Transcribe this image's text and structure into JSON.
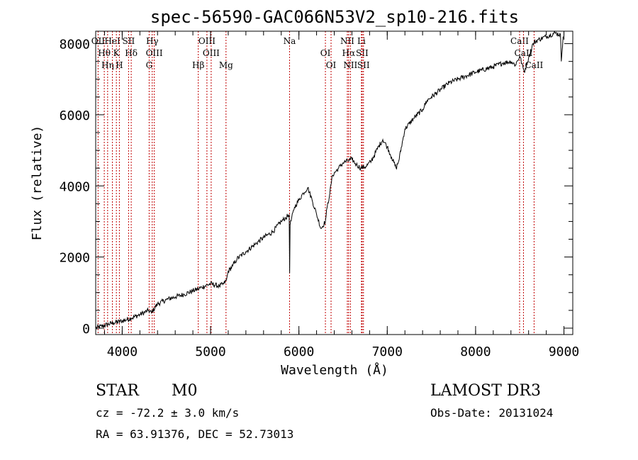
{
  "chart_data": {
    "type": "line",
    "title": "spec-56590-GAC066N53V2_sp10-216.fits",
    "xlabel": "Wavelength (Å)",
    "ylabel": "Flux (relative)",
    "xlim": [
      3700,
      9100
    ],
    "ylim": [
      -180,
      8350
    ],
    "xticks": [
      4000,
      5000,
      6000,
      7000,
      8000,
      9000
    ],
    "yticks": [
      0,
      2000,
      4000,
      6000,
      8000
    ],
    "xtick_labels": [
      "4000",
      "5000",
      "6000",
      "7000",
      "8000",
      "9000"
    ],
    "ytick_labels": [
      "0",
      "2000",
      "4000",
      "6000",
      "8000"
    ],
    "series": [
      {
        "name": "flux",
        "x": [
          3700,
          3800,
          3900,
          4000,
          4100,
          4200,
          4300,
          4330,
          4400,
          4500,
          4600,
          4700,
          4800,
          4860,
          4900,
          5000,
          5100,
          5150,
          5180,
          5200,
          5250,
          5300,
          5400,
          5500,
          5600,
          5700,
          5800,
          5850,
          5890,
          5895,
          5900,
          5950,
          6000,
          6050,
          6100,
          6150,
          6200,
          6250,
          6300,
          6320,
          6350,
          6380,
          6450,
          6500,
          6550,
          6600,
          6650,
          6700,
          6760,
          6820,
          6900,
          6950,
          7000,
          7050,
          7100,
          7130,
          7200,
          7300,
          7400,
          7450,
          7500,
          7600,
          7700,
          7800,
          8000,
          8200,
          8300,
          8400,
          8450,
          8500,
          8550,
          8600,
          8650,
          8700,
          8800,
          8900,
          8960,
          8970,
          8990
        ],
        "y": [
          0,
          80,
          150,
          200,
          280,
          380,
          500,
          430,
          680,
          800,
          880,
          950,
          1050,
          1100,
          1150,
          1250,
          1180,
          1250,
          1350,
          1600,
          1750,
          1950,
          2150,
          2350,
          2550,
          2700,
          3000,
          3100,
          3200,
          1550,
          2900,
          3400,
          3600,
          3800,
          3950,
          3600,
          3200,
          2800,
          3000,
          3400,
          3800,
          4300,
          4500,
          4650,
          4700,
          4750,
          4600,
          4500,
          4550,
          4700,
          5100,
          5300,
          5100,
          4800,
          4500,
          4700,
          5600,
          5900,
          6150,
          6400,
          6500,
          6700,
          6900,
          7000,
          7200,
          7350,
          7450,
          7500,
          7400,
          7650,
          7200,
          7600,
          8000,
          8100,
          8200,
          8300,
          8250,
          7500,
          8200
        ]
      }
    ],
    "annotations": [
      {
        "label": "OII",
        "x": 3727
      },
      {
        "label": "Hθ",
        "x": 3797
      },
      {
        "label": "Hη",
        "x": 3835
      },
      {
        "label": "HeI",
        "x": 3889
      },
      {
        "label": "K",
        "x": 3934
      },
      {
        "label": "H",
        "x": 3968
      },
      {
        "label": "SII",
        "x": 4072
      },
      {
        "label": "Hδ",
        "x": 4102
      },
      {
        "label": "G",
        "x": 4305
      },
      {
        "label": "Hγ",
        "x": 4340
      },
      {
        "label": "OIII",
        "x": 4363
      },
      {
        "label": "Hβ",
        "x": 4861
      },
      {
        "label": "OIII",
        "x": 4959
      },
      {
        "label": "OIII",
        "x": 5007
      },
      {
        "label": "Mg",
        "x": 5175
      },
      {
        "label": "Na",
        "x": 5894
      },
      {
        "label": "OI",
        "x": 6300
      },
      {
        "label": "OI",
        "x": 6364
      },
      {
        "label": "NII",
        "x": 6548
      },
      {
        "label": "Hα",
        "x": 6563
      },
      {
        "label": "NII",
        "x": 6583
      },
      {
        "label": "Li",
        "x": 6708
      },
      {
        "label": "SII",
        "x": 6716
      },
      {
        "label": "SII",
        "x": 6731
      },
      {
        "label": "CaII",
        "x": 8498
      },
      {
        "label": "CaII",
        "x": 8542
      },
      {
        "label": "CaII",
        "x": 8662
      }
    ]
  },
  "info": {
    "object_class": "STAR",
    "subclass": "M0",
    "survey": "LAMOST DR3",
    "redshift": "cz = -72.2 ± 3.0 km/s",
    "obs_date": "Obs-Date: 20131024",
    "coords": "RA =  63.91376, DEC =  52.73013"
  },
  "colors": {
    "spectrum": "#000000",
    "line_markers": "#c00000"
  }
}
